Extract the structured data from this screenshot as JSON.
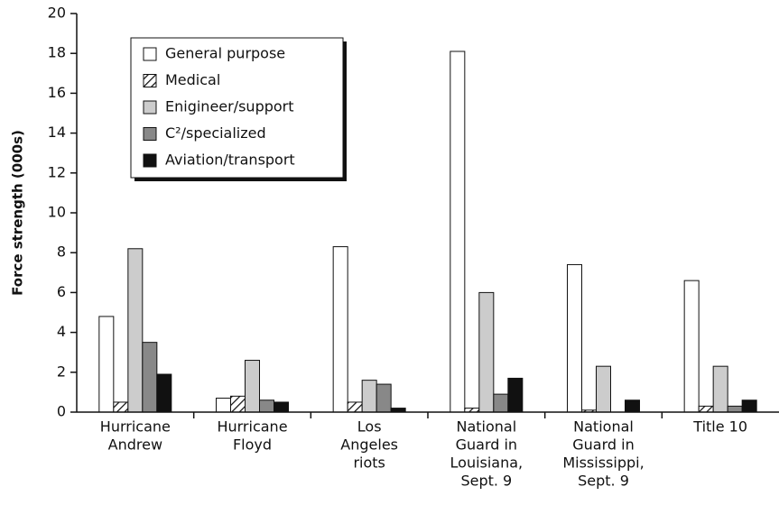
{
  "chart_data": {
    "type": "bar",
    "ylabel": "Force strength (000s)",
    "categories": [
      [
        "Hurricane",
        "Andrew"
      ],
      [
        "Hurricane",
        "Floyd"
      ],
      [
        "Los",
        "Angeles",
        "riots"
      ],
      [
        "National",
        "Guard in",
        "Louisiana,",
        "Sept. 9"
      ],
      [
        "National",
        "Guard in",
        "Mississippi,",
        "Sept. 9"
      ],
      [
        "Title 10"
      ]
    ],
    "series": [
      {
        "name": "General purpose",
        "color": "#ffffff",
        "values": [
          4.8,
          0.7,
          8.3,
          18.1,
          7.4,
          6.6
        ]
      },
      {
        "name": "Medical",
        "color": "#ffffff",
        "hatch": true,
        "values": [
          0.5,
          0.8,
          0.5,
          0.2,
          0.1,
          0.3
        ]
      },
      {
        "name": "Enigineer/support",
        "color": "#cccccc",
        "values": [
          8.2,
          2.6,
          1.6,
          6.0,
          2.3,
          2.3
        ]
      },
      {
        "name": "C²/specialized",
        "color": "#888888",
        "values": [
          3.5,
          0.6,
          1.4,
          0.9,
          0,
          0.3
        ]
      },
      {
        "name": "Aviation/transport",
        "color": "#111111",
        "values": [
          1.9,
          0.5,
          0.2,
          1.7,
          0.6,
          0.6
        ]
      }
    ],
    "ylim": [
      0,
      20
    ],
    "yticks": [
      0,
      2,
      4,
      6,
      8,
      10,
      12,
      14,
      16,
      18,
      20
    ],
    "legend": "upper left"
  }
}
